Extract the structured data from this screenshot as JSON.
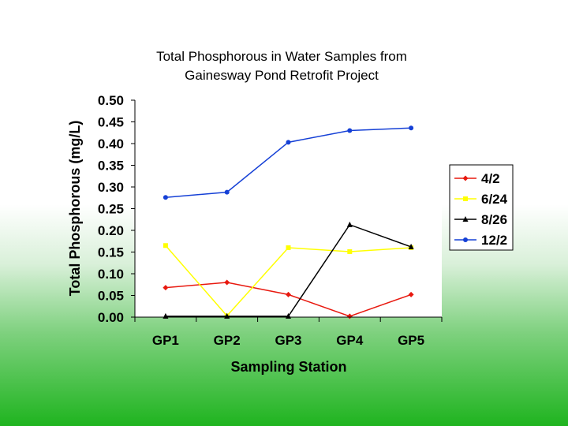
{
  "chart_data": {
    "type": "line",
    "title_lines": [
      "Total Phosphorous in Water Samples from",
      "Gainesway Pond Retrofit Project"
    ],
    "xlabel": "Sampling Station",
    "ylabel": "Total Phosphorous (mg/L)",
    "categories": [
      "GP1",
      "GP2",
      "GP3",
      "GP4",
      "GP5"
    ],
    "ylim": [
      0,
      0.5
    ],
    "yticks": [
      "0.00",
      "0.05",
      "0.10",
      "0.15",
      "0.20",
      "0.25",
      "0.30",
      "0.35",
      "0.40",
      "0.45",
      "0.50"
    ],
    "grid": false,
    "legend_position": "right",
    "series": [
      {
        "name": "4/2",
        "color": "#e8190f",
        "marker": "diamond",
        "values": [
          0.068,
          0.08,
          0.052,
          0.002,
          0.052
        ]
      },
      {
        "name": "6/24",
        "color": "#ffff00",
        "marker": "square",
        "values": [
          0.165,
          0.003,
          0.16,
          0.151,
          0.16
        ]
      },
      {
        "name": "8/26",
        "color": "#000000",
        "marker": "triangle",
        "values": [
          0.002,
          0.002,
          0.002,
          0.213,
          0.162
        ]
      },
      {
        "name": "12/2",
        "color": "#1540d6",
        "marker": "circle",
        "values": [
          0.276,
          0.288,
          0.403,
          0.43,
          0.436
        ]
      }
    ]
  }
}
